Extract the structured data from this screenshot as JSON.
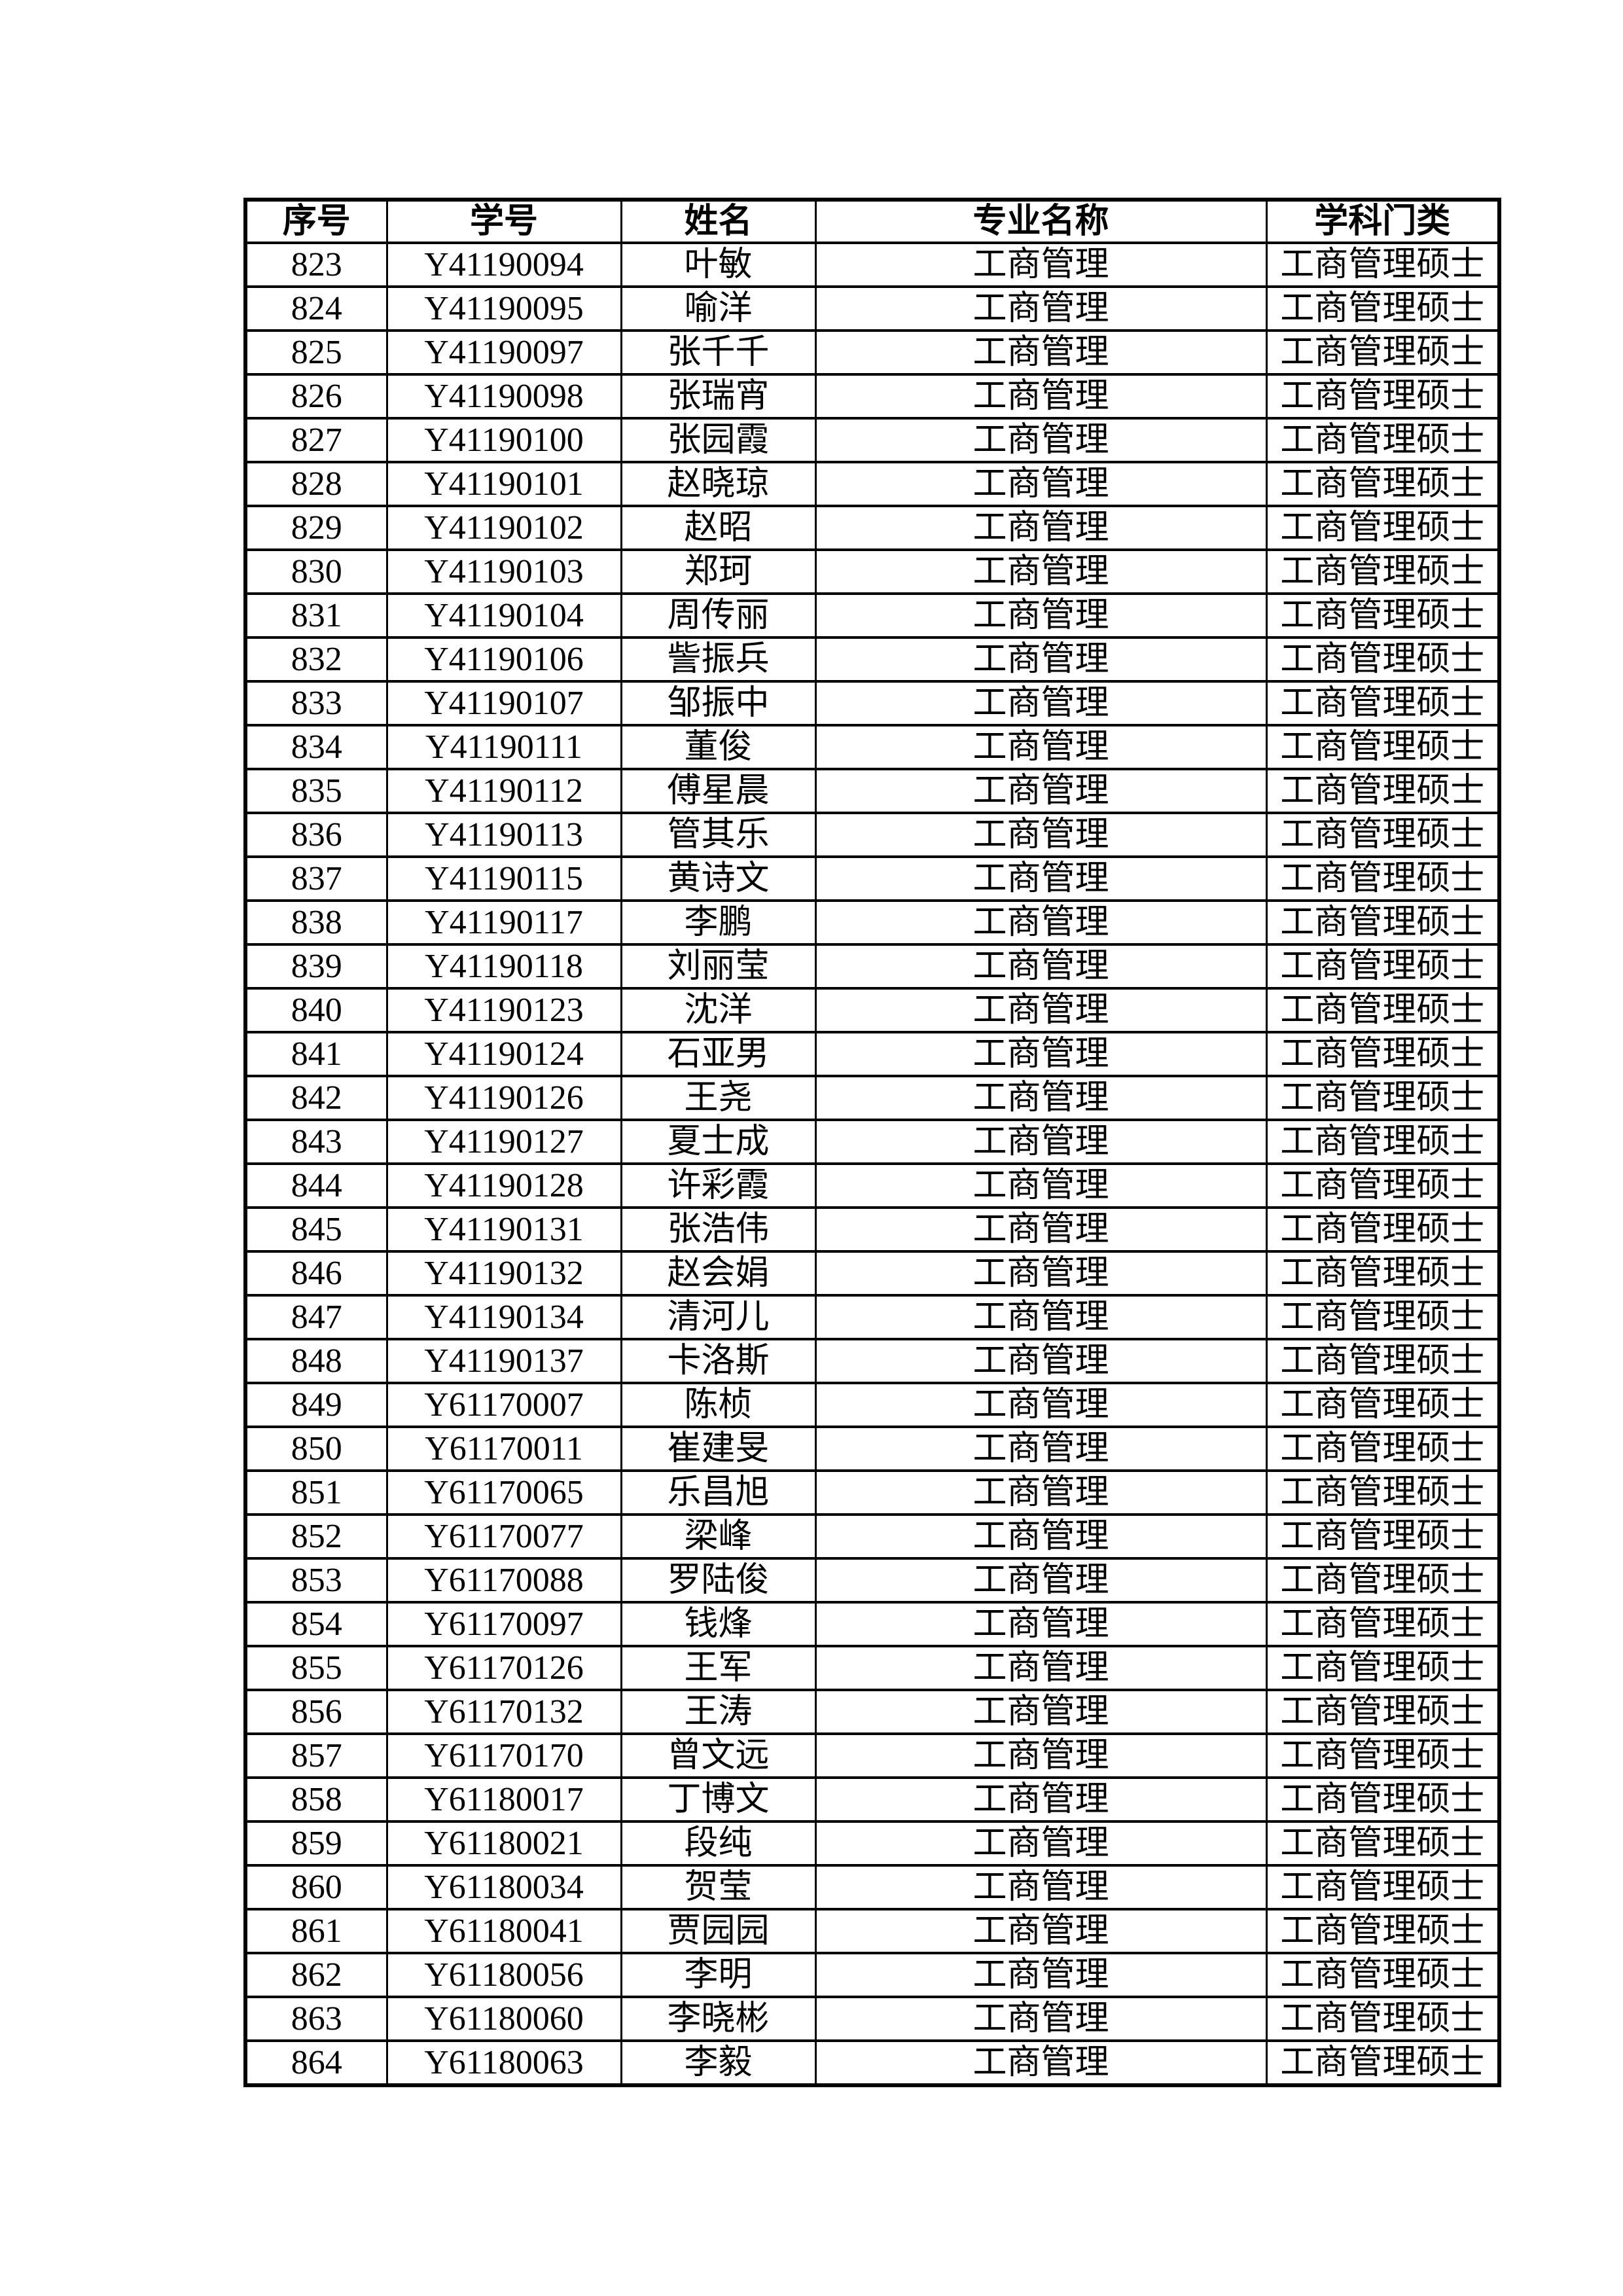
{
  "table": {
    "columns": [
      {
        "key": "no",
        "label": "序号"
      },
      {
        "key": "id",
        "label": "学号"
      },
      {
        "key": "name",
        "label": "姓名"
      },
      {
        "key": "major",
        "label": "专业名称"
      },
      {
        "key": "category",
        "label": "学科门类"
      }
    ],
    "rows": [
      {
        "no": "823",
        "id": "Y41190094",
        "name": "叶敏",
        "major": "工商管理",
        "category": "工商管理硕士"
      },
      {
        "no": "824",
        "id": "Y41190095",
        "name": "喻洋",
        "major": "工商管理",
        "category": "工商管理硕士"
      },
      {
        "no": "825",
        "id": "Y41190097",
        "name": "张千千",
        "major": "工商管理",
        "category": "工商管理硕士"
      },
      {
        "no": "826",
        "id": "Y41190098",
        "name": "张瑞宵",
        "major": "工商管理",
        "category": "工商管理硕士"
      },
      {
        "no": "827",
        "id": "Y41190100",
        "name": "张园霞",
        "major": "工商管理",
        "category": "工商管理硕士"
      },
      {
        "no": "828",
        "id": "Y41190101",
        "name": "赵晓琼",
        "major": "工商管理",
        "category": "工商管理硕士"
      },
      {
        "no": "829",
        "id": "Y41190102",
        "name": "赵昭",
        "major": "工商管理",
        "category": "工商管理硕士"
      },
      {
        "no": "830",
        "id": "Y41190103",
        "name": "郑珂",
        "major": "工商管理",
        "category": "工商管理硕士"
      },
      {
        "no": "831",
        "id": "Y41190104",
        "name": "周传丽",
        "major": "工商管理",
        "category": "工商管理硕士"
      },
      {
        "no": "832",
        "id": "Y41190106",
        "name": "訾振兵",
        "major": "工商管理",
        "category": "工商管理硕士"
      },
      {
        "no": "833",
        "id": "Y41190107",
        "name": "邹振中",
        "major": "工商管理",
        "category": "工商管理硕士"
      },
      {
        "no": "834",
        "id": "Y41190111",
        "name": "董俊",
        "major": "工商管理",
        "category": "工商管理硕士"
      },
      {
        "no": "835",
        "id": "Y41190112",
        "name": "傅星晨",
        "major": "工商管理",
        "category": "工商管理硕士"
      },
      {
        "no": "836",
        "id": "Y41190113",
        "name": "管其乐",
        "major": "工商管理",
        "category": "工商管理硕士"
      },
      {
        "no": "837",
        "id": "Y41190115",
        "name": "黄诗文",
        "major": "工商管理",
        "category": "工商管理硕士"
      },
      {
        "no": "838",
        "id": "Y41190117",
        "name": "李鹏",
        "major": "工商管理",
        "category": "工商管理硕士"
      },
      {
        "no": "839",
        "id": "Y41190118",
        "name": "刘丽莹",
        "major": "工商管理",
        "category": "工商管理硕士"
      },
      {
        "no": "840",
        "id": "Y41190123",
        "name": "沈洋",
        "major": "工商管理",
        "category": "工商管理硕士"
      },
      {
        "no": "841",
        "id": "Y41190124",
        "name": "石亚男",
        "major": "工商管理",
        "category": "工商管理硕士"
      },
      {
        "no": "842",
        "id": "Y41190126",
        "name": "王尧",
        "major": "工商管理",
        "category": "工商管理硕士"
      },
      {
        "no": "843",
        "id": "Y41190127",
        "name": "夏士成",
        "major": "工商管理",
        "category": "工商管理硕士"
      },
      {
        "no": "844",
        "id": "Y41190128",
        "name": "许彩霞",
        "major": "工商管理",
        "category": "工商管理硕士"
      },
      {
        "no": "845",
        "id": "Y41190131",
        "name": "张浩伟",
        "major": "工商管理",
        "category": "工商管理硕士"
      },
      {
        "no": "846",
        "id": "Y41190132",
        "name": "赵会娟",
        "major": "工商管理",
        "category": "工商管理硕士"
      },
      {
        "no": "847",
        "id": "Y41190134",
        "name": "清河儿",
        "major": "工商管理",
        "category": "工商管理硕士"
      },
      {
        "no": "848",
        "id": "Y41190137",
        "name": "卡洛斯",
        "major": "工商管理",
        "category": "工商管理硕士"
      },
      {
        "no": "849",
        "id": "Y61170007",
        "name": "陈桢",
        "major": "工商管理",
        "category": "工商管理硕士"
      },
      {
        "no": "850",
        "id": "Y61170011",
        "name": "崔建旻",
        "major": "工商管理",
        "category": "工商管理硕士"
      },
      {
        "no": "851",
        "id": "Y61170065",
        "name": "乐昌旭",
        "major": "工商管理",
        "category": "工商管理硕士"
      },
      {
        "no": "852",
        "id": "Y61170077",
        "name": "梁峰",
        "major": "工商管理",
        "category": "工商管理硕士"
      },
      {
        "no": "853",
        "id": "Y61170088",
        "name": "罗陆俊",
        "major": "工商管理",
        "category": "工商管理硕士"
      },
      {
        "no": "854",
        "id": "Y61170097",
        "name": "钱烽",
        "major": "工商管理",
        "category": "工商管理硕士"
      },
      {
        "no": "855",
        "id": "Y61170126",
        "name": "王军",
        "major": "工商管理",
        "category": "工商管理硕士"
      },
      {
        "no": "856",
        "id": "Y61170132",
        "name": "王涛",
        "major": "工商管理",
        "category": "工商管理硕士"
      },
      {
        "no": "857",
        "id": "Y61170170",
        "name": "曾文远",
        "major": "工商管理",
        "category": "工商管理硕士"
      },
      {
        "no": "858",
        "id": "Y61180017",
        "name": "丁博文",
        "major": "工商管理",
        "category": "工商管理硕士"
      },
      {
        "no": "859",
        "id": "Y61180021",
        "name": "段纯",
        "major": "工商管理",
        "category": "工商管理硕士"
      },
      {
        "no": "860",
        "id": "Y61180034",
        "name": "贺莹",
        "major": "工商管理",
        "category": "工商管理硕士"
      },
      {
        "no": "861",
        "id": "Y61180041",
        "name": "贾园园",
        "major": "工商管理",
        "category": "工商管理硕士"
      },
      {
        "no": "862",
        "id": "Y61180056",
        "name": "李明",
        "major": "工商管理",
        "category": "工商管理硕士"
      },
      {
        "no": "863",
        "id": "Y61180060",
        "name": "李晓彬",
        "major": "工商管理",
        "category": "工商管理硕士"
      },
      {
        "no": "864",
        "id": "Y61180063",
        "name": "李毅",
        "major": "工商管理",
        "category": "工商管理硕士"
      }
    ]
  }
}
